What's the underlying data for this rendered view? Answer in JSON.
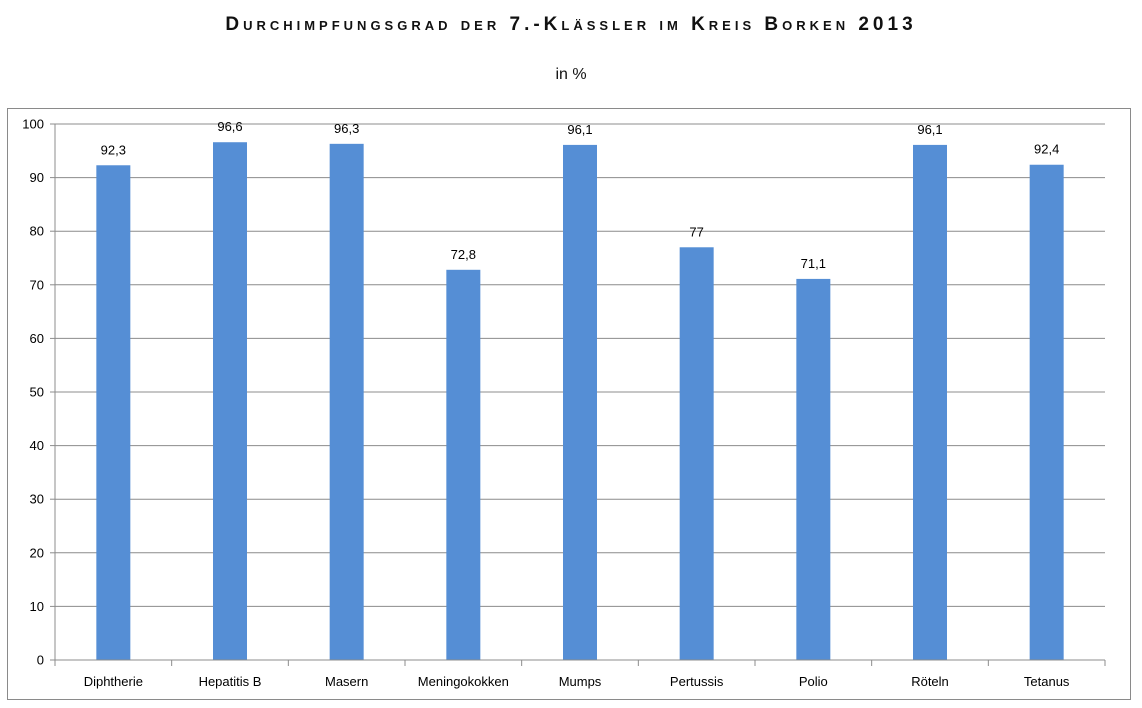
{
  "chart_data": {
    "type": "bar",
    "title": "Durchimpfungsgrad der 7.-Klässler im Kreis Borken 2013",
    "subtitle": "in %",
    "xlabel": "",
    "ylabel": "",
    "categories": [
      "Diphtherie",
      "Hepatitis B",
      "Masern",
      "Meningokokken",
      "Mumps",
      "Pertussis",
      "Polio",
      "Röteln",
      "Tetanus"
    ],
    "values": [
      92.3,
      96.6,
      96.3,
      72.8,
      96.1,
      77,
      71.1,
      96.1,
      92.4
    ],
    "value_labels": [
      "92,3",
      "96,6",
      "96,3",
      "72,8",
      "96,1",
      "77",
      "71,1",
      "96,1",
      "92,4"
    ],
    "ylim": [
      0,
      100
    ],
    "yticks": [
      0,
      10,
      20,
      30,
      40,
      50,
      60,
      70,
      80,
      90,
      100
    ],
    "grid": true,
    "legend": "none",
    "bar_color": "#558ED5",
    "grid_color": "#8C8C8C"
  }
}
